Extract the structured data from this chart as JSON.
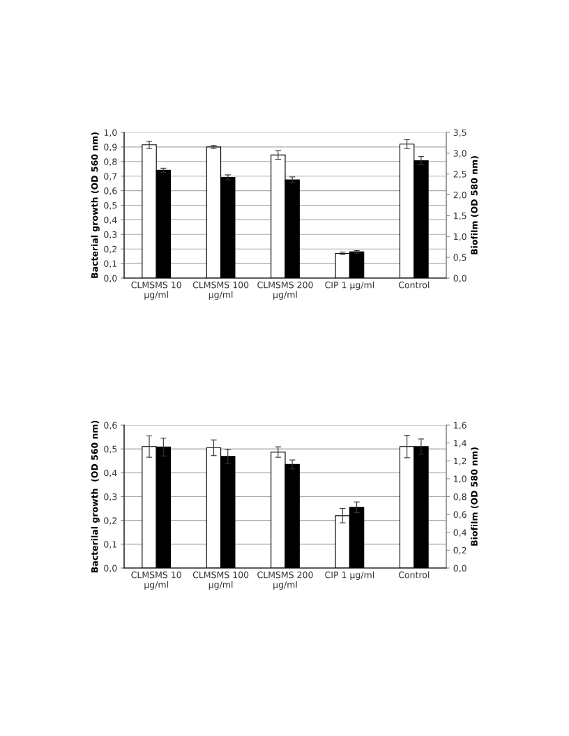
{
  "chart_data": [
    {
      "type": "bar",
      "ylabel": "Bacterial growth (OD 560 nm)",
      "y2label": "Biofilm (OD 580 nm)",
      "categories": [
        "CLMSMS 10\nµg/ml",
        "CLMSMS 100\nµg/ml",
        "CLMSMS 200\nµg/ml",
        "CIP 1 µg/ml",
        "Control"
      ],
      "series": [
        {
          "color": "#ffffff",
          "values": [
            0.915,
            0.9,
            0.845,
            0.17,
            0.92
          ],
          "errors": [
            0.025,
            0.01,
            0.03,
            0.008,
            0.03
          ]
        },
        {
          "color": "#000000",
          "axis": "y2",
          "values": [
            2.59,
            2.42,
            2.36,
            0.63,
            2.82
          ],
          "errors": [
            0.05,
            0.06,
            0.07,
            0.03,
            0.1
          ]
        }
      ],
      "ylim": [
        0,
        1.0
      ],
      "yticks": [
        {
          "value": 0,
          "label": "0,0"
        },
        {
          "value": 0.1,
          "label": "0,1"
        },
        {
          "value": 0.2,
          "label": "0,2"
        },
        {
          "value": 0.3,
          "label": "0,3"
        },
        {
          "value": 0.4,
          "label": "0,4"
        },
        {
          "value": 0.5,
          "label": "0,5"
        },
        {
          "value": 0.6,
          "label": "0,6"
        },
        {
          "value": 0.7,
          "label": "0,7"
        },
        {
          "value": 0.8,
          "label": "0,8"
        },
        {
          "value": 0.9,
          "label": "0,9"
        },
        {
          "value": 1.0,
          "label": "1,0"
        }
      ],
      "y2lim": [
        0,
        3.5
      ],
      "y2ticks": [
        {
          "value": 0,
          "label": "0,0"
        },
        {
          "value": 0.5,
          "label": "0,5"
        },
        {
          "value": 1.0,
          "label": "1,0"
        },
        {
          "value": 1.5,
          "label": "1,5"
        },
        {
          "value": 2.0,
          "label": "2,0"
        },
        {
          "value": 2.5,
          "label": "2,5"
        },
        {
          "value": 3.0,
          "label": "3,0"
        },
        {
          "value": 3.5,
          "label": "3,5"
        }
      ],
      "grid": "y"
    },
    {
      "type": "bar",
      "ylabel": "Bacterilal growth  (OD 560 nm)",
      "y2label": "Biofilm (OD 580 nm)",
      "categories": [
        "CLMSMS 10\nµg/ml",
        "CLMSMS 100\nµg/ml",
        "CLMSMS 200\nµg/ml",
        "CIP 1 µg/ml",
        "Control"
      ],
      "series": [
        {
          "color": "#ffffff",
          "values": [
            0.51,
            0.505,
            0.487,
            0.22,
            0.51
          ],
          "errors": [
            0.045,
            0.033,
            0.022,
            0.03,
            0.047
          ]
        },
        {
          "color": "#000000",
          "axis": "y2",
          "values": [
            1.355,
            1.25,
            1.16,
            0.68,
            1.36
          ],
          "errors": [
            0.1,
            0.08,
            0.05,
            0.06,
            0.085
          ]
        }
      ],
      "ylim": [
        0,
        0.6
      ],
      "yticks": [
        {
          "value": 0,
          "label": "0,0"
        },
        {
          "value": 0.1,
          "label": "0,1"
        },
        {
          "value": 0.2,
          "label": "0,2"
        },
        {
          "value": 0.3,
          "label": "0,3"
        },
        {
          "value": 0.4,
          "label": "0,4"
        },
        {
          "value": 0.5,
          "label": "0,5"
        },
        {
          "value": 0.6,
          "label": "0,6"
        }
      ],
      "y2lim": [
        0,
        1.6
      ],
      "y2ticks": [
        {
          "value": 0,
          "label": "0,0"
        },
        {
          "value": 0.2,
          "label": "0,2"
        },
        {
          "value": 0.4,
          "label": "0,4"
        },
        {
          "value": 0.6,
          "label": "0,6"
        },
        {
          "value": 0.8,
          "label": "0,8"
        },
        {
          "value": 1.0,
          "label": "1,0"
        },
        {
          "value": 1.2,
          "label": "1,2"
        },
        {
          "value": 1.4,
          "label": "1,4"
        },
        {
          "value": 1.6,
          "label": "1,6"
        }
      ],
      "grid": "y"
    }
  ]
}
